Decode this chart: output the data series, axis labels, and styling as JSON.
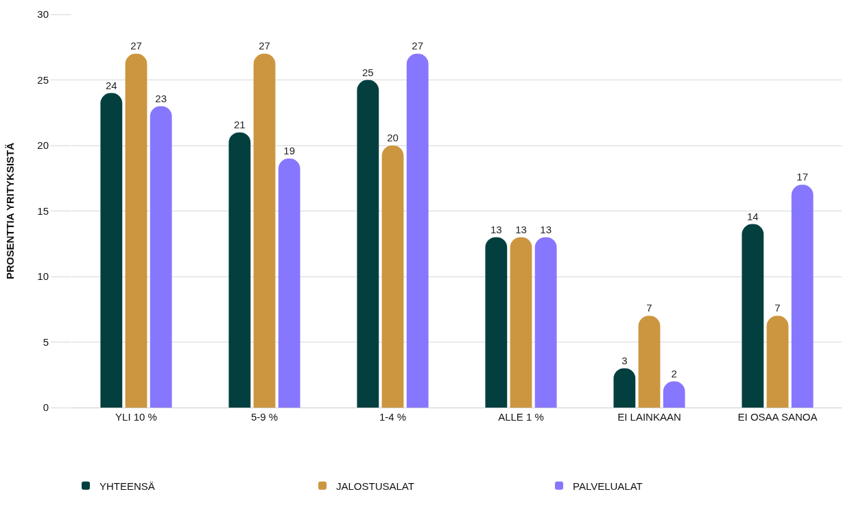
{
  "chart_data": {
    "type": "bar",
    "ylabel": "PROSENTTIA YRITYKSISTÄ",
    "categories": [
      "YLI 10 %",
      "5-9 %",
      "1-4 %",
      "ALLE 1 %",
      "EI LAINKAAN",
      "EI OSAA SANOA"
    ],
    "series": [
      {
        "name": "YHTEENSÄ",
        "color": "#033f3f",
        "values": [
          24,
          21,
          25,
          13,
          3,
          14
        ]
      },
      {
        "name": "JALOSTUSALAT",
        "color": "#cc9640",
        "values": [
          27,
          27,
          20,
          13,
          7,
          7
        ]
      },
      {
        "name": "PALVELUALAT",
        "color": "#8677fe",
        "values": [
          23,
          19,
          27,
          13,
          2,
          17
        ]
      }
    ],
    "ylim": [
      0,
      30
    ],
    "yticks": [
      0,
      5,
      10,
      15,
      20,
      25,
      30
    ],
    "grid": "y",
    "legend": "bottom left",
    "data_labels": true
  }
}
